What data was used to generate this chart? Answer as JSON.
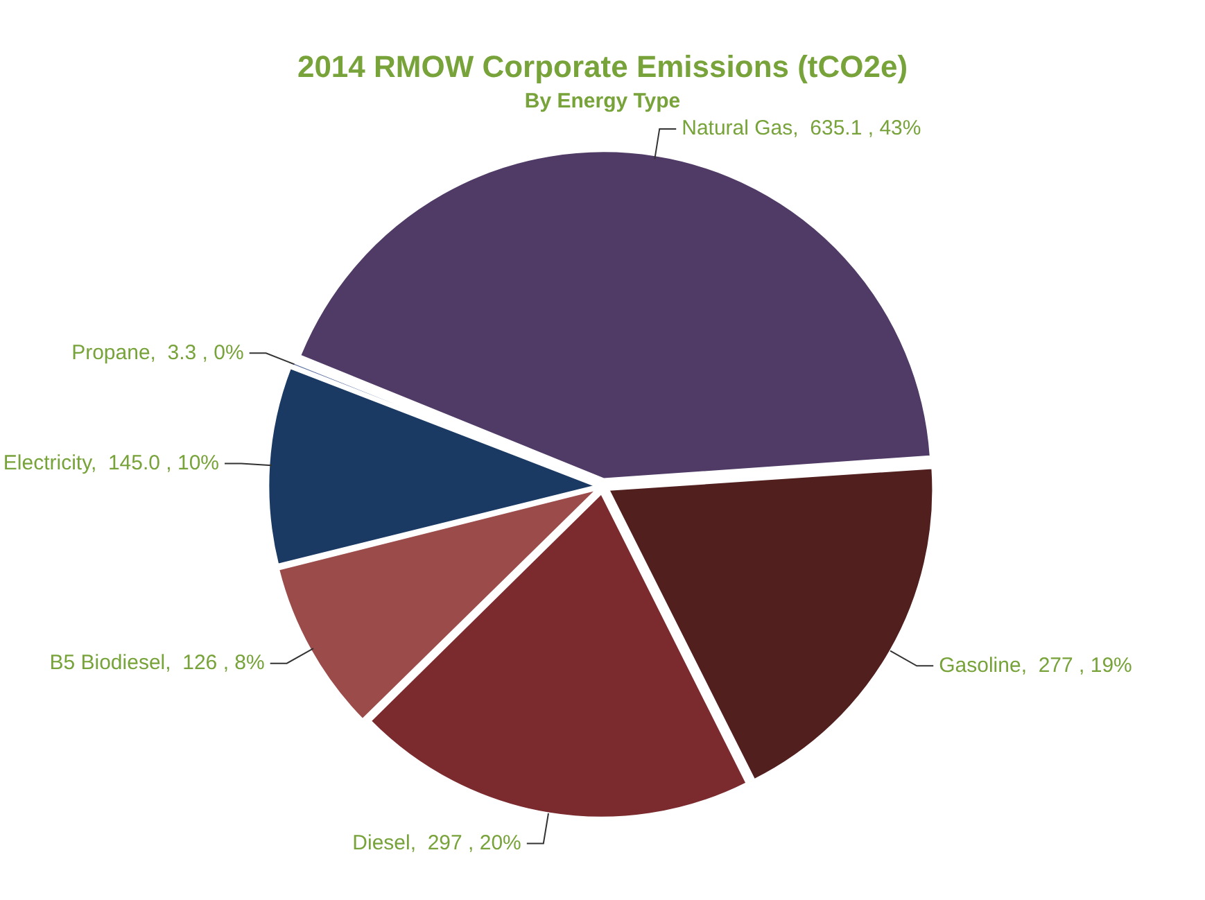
{
  "chart_data": {
    "type": "pie",
    "title": "2014 RMOW Corporate Emissions (tCO2e)",
    "subtitle": "By Energy Type",
    "categories": [
      "Natural Gas",
      "Gasoline",
      "Diesel",
      "B5 Biodiesel",
      "Electricity",
      "Propane"
    ],
    "values": [
      635.1,
      277,
      297,
      126,
      145.0,
      3.3
    ],
    "value_labels": [
      "635.1 , 43%",
      "277 , 19%",
      "297 , 20%",
      "126 , 8%",
      "145.0 , 10%",
      "3.3 , 0%"
    ],
    "colors": [
      "#4f3b66",
      "#521f1f",
      "#7b2a2e",
      "#9b4c4a",
      "#1a3a64",
      "#5a6fa0"
    ],
    "legend": false
  }
}
